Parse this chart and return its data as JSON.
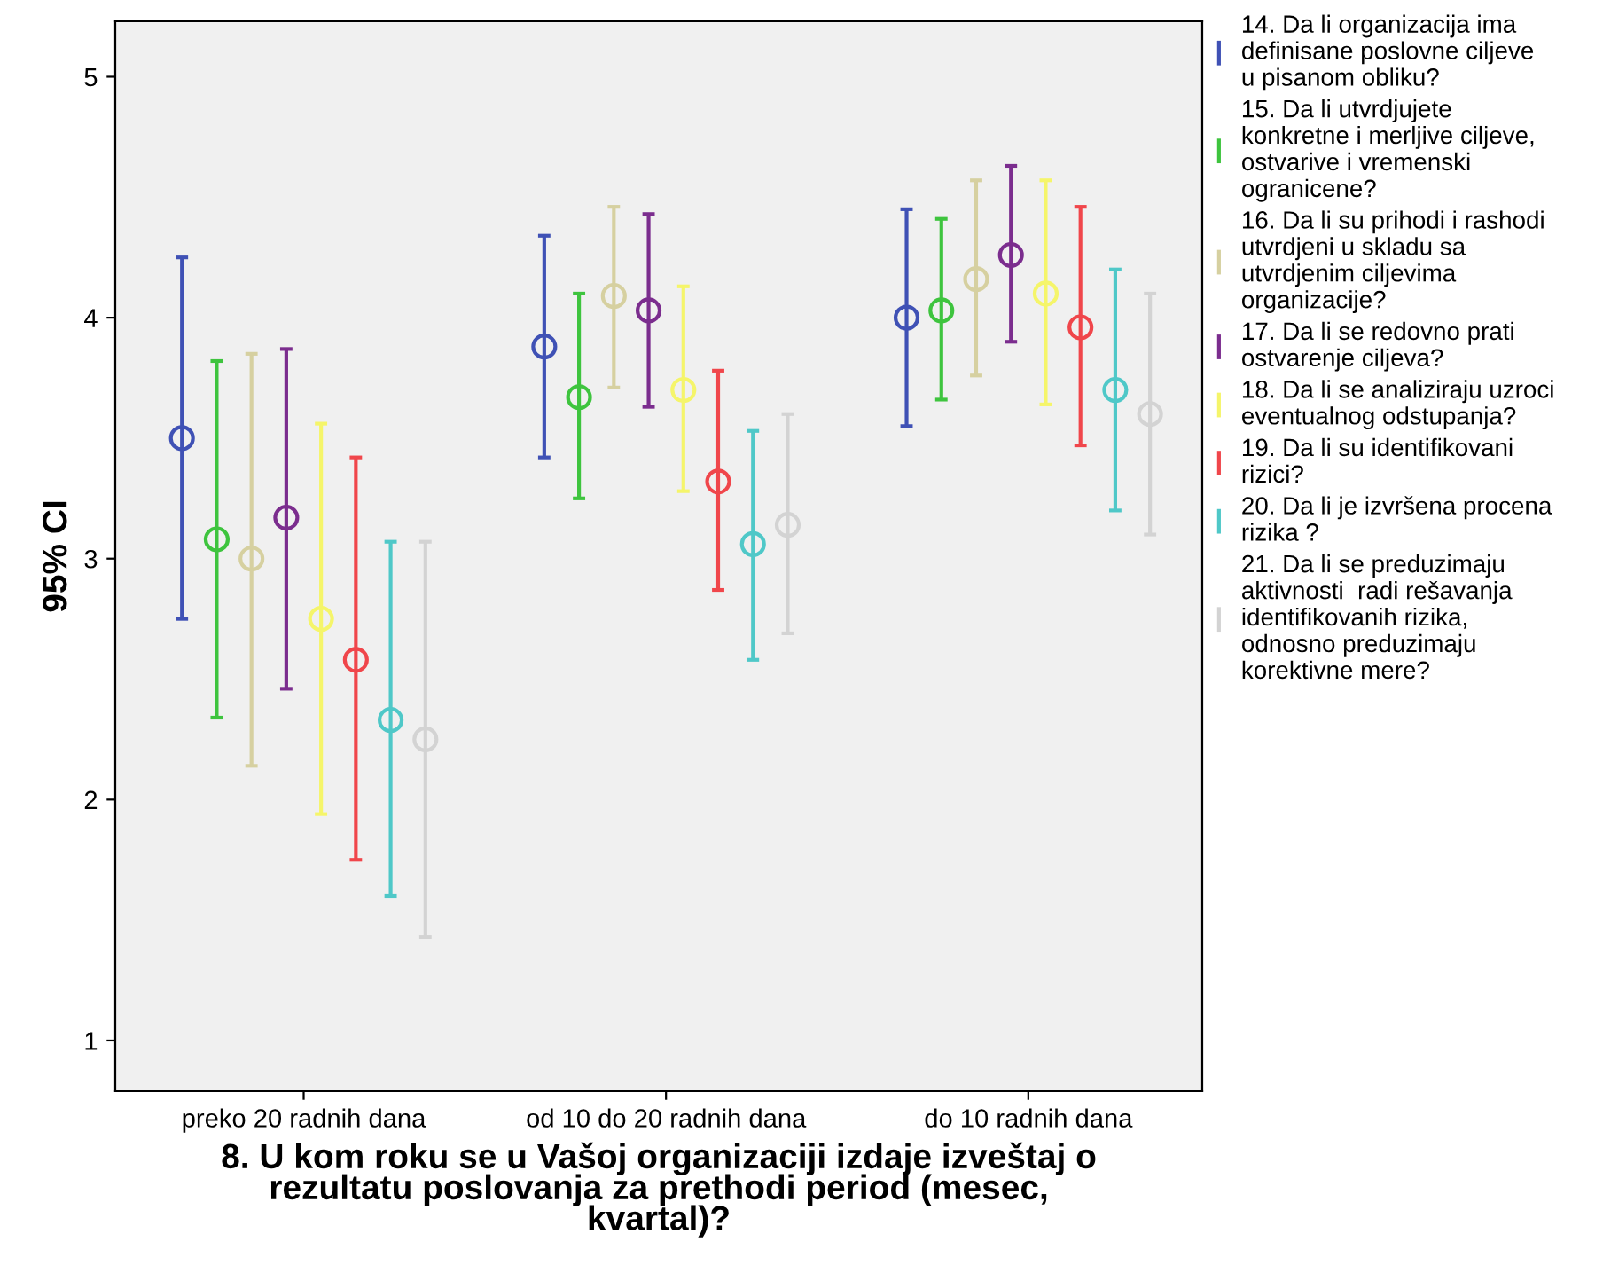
{
  "chart_data": {
    "type": "scatter",
    "xlabel": "8. U kom roku se u Vašoj organizaciji izdaje izveštaj o\nrezultatu poslovanja za prethodi period (mesec,\nkvartal)?",
    "ylabel": "95% CI",
    "categories": [
      "preko 20 radnih dana",
      "od 10 do 20 radnih dana",
      "do 10 radnih dana"
    ],
    "ylim": [
      0.79,
      5.23
    ],
    "yticks": [
      1,
      2,
      3,
      4,
      5
    ],
    "grid": false,
    "legend": "right",
    "marker": "circle",
    "series": [
      {
        "name": "14. Da li organizacija ima\ndefinisane poslovne ciljeve\nu pisanom obliku?",
        "color": "#3f51b5",
        "values": [
          3.5,
          3.88,
          4.0
        ],
        "errors": [
          [
            2.75,
            4.25
          ],
          [
            3.42,
            4.34
          ],
          [
            3.55,
            4.45
          ]
        ]
      },
      {
        "name": "15. Da li utvrdjujete\nkonkretne i merljive ciljeve,\nostvarive i vremenski\nogranicene?",
        "color": "#3ec43e",
        "values": [
          3.08,
          3.67,
          4.03
        ],
        "errors": [
          [
            2.34,
            3.82
          ],
          [
            3.25,
            4.1
          ],
          [
            3.66,
            4.41
          ]
        ]
      },
      {
        "name": "16. Da li su prihodi i rashodi\nutvrdjeni u skladu sa\nutvrdjenim ciljevima\norganizacije?",
        "color": "#d6d0a0",
        "values": [
          3.0,
          4.09,
          4.16
        ],
        "errors": [
          [
            2.14,
            3.85
          ],
          [
            3.71,
            4.46
          ],
          [
            3.76,
            4.57
          ]
        ]
      },
      {
        "name": "17. Da li se redovno prati\nostvarenje ciljeva?",
        "color": "#7b2d8e",
        "values": [
          3.17,
          4.03,
          4.26
        ],
        "errors": [
          [
            2.46,
            3.87
          ],
          [
            3.63,
            4.43
          ],
          [
            3.9,
            4.63
          ]
        ]
      },
      {
        "name": "18. Da li se analiziraju uzroci\neventualnog odstupanja?",
        "color": "#f5f56a",
        "values": [
          2.75,
          3.7,
          4.1
        ],
        "errors": [
          [
            1.94,
            3.56
          ],
          [
            3.28,
            4.13
          ],
          [
            3.64,
            4.57
          ]
        ]
      },
      {
        "name": "19. Da li su identifikovani\nrizici?",
        "color": "#f0464b",
        "values": [
          2.58,
          3.32,
          3.96
        ],
        "errors": [
          [
            1.75,
            3.42
          ],
          [
            2.87,
            3.78
          ],
          [
            3.47,
            4.46
          ]
        ]
      },
      {
        "name": "20. Da li je izvršena procena\nrizika ?",
        "color": "#4fc8c8",
        "values": [
          2.33,
          3.06,
          3.7
        ],
        "errors": [
          [
            1.6,
            3.07
          ],
          [
            2.58,
            3.53
          ],
          [
            3.2,
            4.2
          ]
        ]
      },
      {
        "name": "21. Da li se preduzimaju\naktivnosti  radi rešavanja\nidentifikovanih rizika,\nodnosno preduzimaju\nkorektivne mere?",
        "color": "#d3d3d3",
        "values": [
          2.25,
          3.14,
          3.6
        ],
        "errors": [
          [
            1.43,
            3.07
          ],
          [
            2.69,
            3.6
          ],
          [
            3.1,
            4.1
          ]
        ]
      }
    ]
  }
}
